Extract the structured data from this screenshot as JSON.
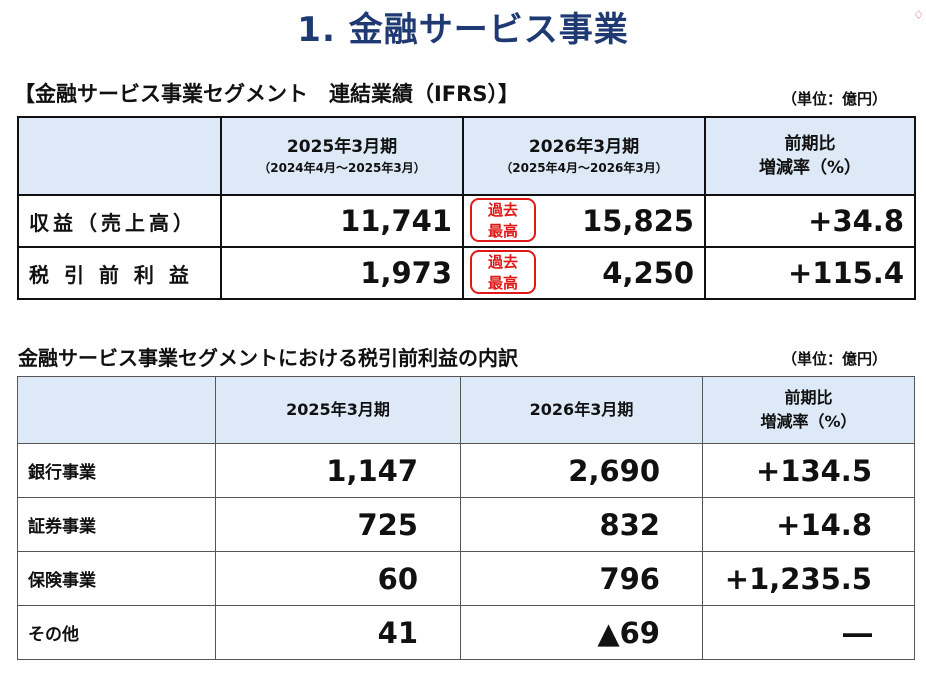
{
  "page": {
    "title": "1. 金融サービス事業",
    "corner_mark": "♢"
  },
  "section1": {
    "heading": "【金融サービス事業セグメント　連結業績（IFRS）】",
    "unit": "（単位：億円）",
    "header": {
      "col1_main": "2025年3月期",
      "col1_sub": "（2024年4月～2025年3月）",
      "col2_main": "2026年3月期",
      "col2_sub": "（2025年4月～2026年3月）",
      "col3_line1": "前期比",
      "col3_line2": "増減率（%）"
    },
    "rows": [
      {
        "label": "収益（売上高）",
        "fy2025": "11,741",
        "fy2026": "15,825",
        "badge_line1": "過去",
        "badge_line2": "最高",
        "change": "+34.8"
      },
      {
        "label": "税 引 前 利 益",
        "fy2025": "1,973",
        "fy2026": "4,250",
        "badge_line1": "過去",
        "badge_line2": "最高",
        "change": "+115.4"
      }
    ]
  },
  "section2": {
    "heading": "金融サービス事業セグメントにおける税引前利益の内訳",
    "unit": "（単位：億円）",
    "header": {
      "col1": "2025年3月期",
      "col2": "2026年3月期",
      "col3_line1": "前期比",
      "col3_line2": "増減率（%）"
    },
    "rows": [
      {
        "label": "銀行事業",
        "fy2025": "1,147",
        "fy2026": "2,690",
        "change": "+134.5"
      },
      {
        "label": "証券事業",
        "fy2025": "725",
        "fy2026": "832",
        "change": "+14.8"
      },
      {
        "label": "保険事業",
        "fy2025": "60",
        "fy2026": "796",
        "change": "+1,235.5"
      },
      {
        "label": "その他",
        "fy2025": "41",
        "fy2026": "▲69",
        "change": "―"
      }
    ]
  },
  "colors": {
    "title": "#1f3a73",
    "header_bg": "#dde9f7",
    "badge": "#e01818"
  }
}
